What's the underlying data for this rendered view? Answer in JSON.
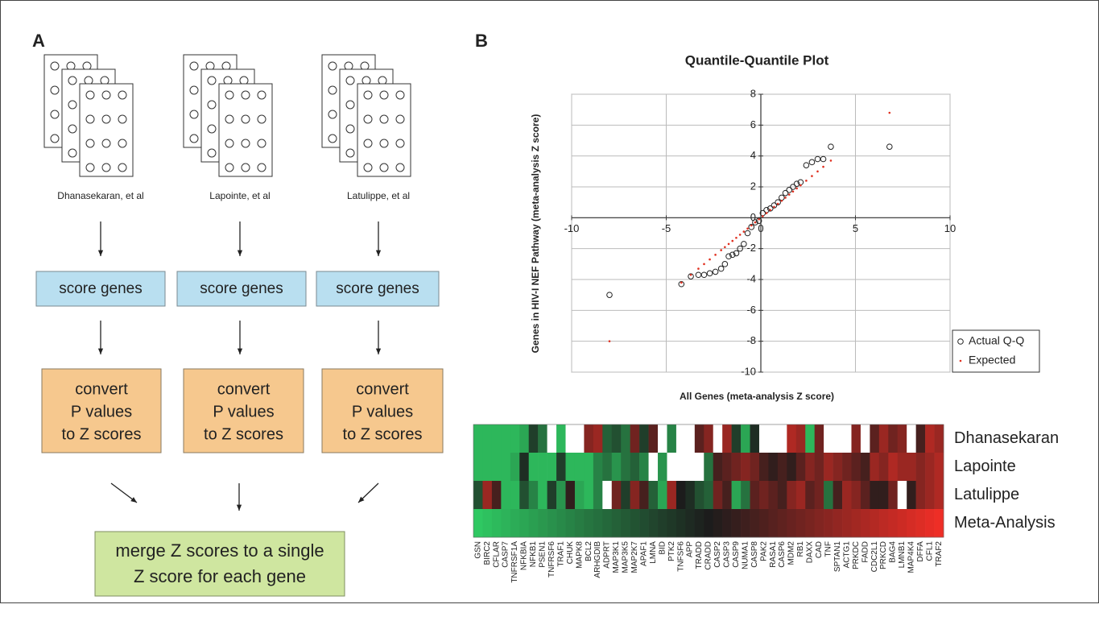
{
  "panel_a": {
    "label": "A",
    "studies": [
      "Dhanasekaran, et al",
      "Lapointe, et al",
      "Latulippe, et al"
    ],
    "score_step": [
      "score genes",
      "score genes",
      "score genes"
    ],
    "convert_step": [
      [
        "convert",
        "P values",
        "to Z scores"
      ],
      [
        "convert",
        "P values",
        "to Z scores"
      ],
      [
        "convert",
        "P values",
        "to Z scores"
      ]
    ],
    "merge_step": [
      "merge Z scores to a single",
      "Z score for each gene"
    ]
  },
  "panel_b": {
    "label": "B"
  },
  "chart_data": [
    {
      "type": "scatter",
      "title": "Quantile-Quantile Plot",
      "x_label": "All Genes (meta-analysis Z score)",
      "y_label": "Genes in HIV-I NEF Pathway (meta-analysis Z score)",
      "xlim": [
        -10,
        10
      ],
      "xticks": [
        -10,
        -5,
        0,
        5,
        10
      ],
      "ylim": [
        -10,
        8
      ],
      "yticks": [
        -10,
        -8,
        -6,
        -4,
        -2,
        0,
        2,
        4,
        6,
        8
      ],
      "grid": true,
      "legend": "lower right",
      "series": [
        {
          "name": "Actual Q-Q",
          "color": "#222222",
          "marker": "open-circle",
          "x": [
            -8,
            -4.2,
            -3.7,
            -3.3,
            -3.0,
            -2.7,
            -2.4,
            -2.1,
            -1.9,
            -1.7,
            -1.5,
            -1.3,
            -1.1,
            -0.9,
            -0.7,
            -0.5,
            -0.3,
            -0.1,
            0.1,
            0.3,
            0.5,
            0.7,
            0.9,
            1.1,
            1.3,
            1.5,
            1.7,
            1.9,
            2.1,
            2.4,
            2.7,
            3.0,
            3.3,
            3.7,
            6.8
          ],
          "values": [
            -5,
            -4.3,
            -3.8,
            -3.7,
            -3.7,
            -3.6,
            -3.5,
            -3.3,
            -3.0,
            -2.5,
            -2.4,
            -2.3,
            -2.0,
            -1.7,
            -1.0,
            -0.6,
            -0.3,
            -0.2,
            0.3,
            0.5,
            0.6,
            0.8,
            1.0,
            1.3,
            1.6,
            1.8,
            2.0,
            2.2,
            2.3,
            3.4,
            3.6,
            3.8,
            3.8,
            4.6,
            4.6
          ]
        },
        {
          "name": "Expected",
          "color": "#e03020",
          "marker": "dot",
          "x": [
            -8,
            -4.2,
            -3.7,
            -3.3,
            -3.0,
            -2.7,
            -2.4,
            -2.1,
            -1.9,
            -1.7,
            -1.5,
            -1.3,
            -1.1,
            -0.9,
            -0.7,
            -0.5,
            -0.3,
            -0.1,
            0.1,
            0.3,
            0.5,
            0.7,
            0.9,
            1.1,
            1.3,
            1.5,
            1.7,
            1.9,
            2.1,
            2.4,
            2.7,
            3.0,
            3.3,
            3.7,
            6.8
          ],
          "values": [
            -8,
            -4.2,
            -3.7,
            -3.3,
            -3.0,
            -2.7,
            -2.4,
            -2.1,
            -1.9,
            -1.7,
            -1.5,
            -1.3,
            -1.1,
            -0.9,
            -0.7,
            -0.5,
            -0.3,
            -0.1,
            0.1,
            0.3,
            0.5,
            0.7,
            0.9,
            1.1,
            1.3,
            1.5,
            1.7,
            1.9,
            2.1,
            2.4,
            2.7,
            3.0,
            3.3,
            3.7,
            6.8
          ]
        }
      ]
    },
    {
      "type": "heatmap",
      "rows": [
        "Dhanasekaran",
        "Lapointe",
        "Latulippe",
        "Meta-Analysis"
      ],
      "columns": [
        "GSN",
        "BIRC2",
        "CFLAR",
        "CASP7",
        "TNFRSF1A",
        "NFKBIA",
        "NFKB1",
        "PSEN1",
        "TNFRSF6",
        "TRAF1",
        "CHUK",
        "MAPK8",
        "BCL2",
        "ARHGDIB",
        "ADPRT",
        "MAP3K1",
        "MAP3K5",
        "MAP2K7",
        "APAF1",
        "LMNA",
        "BID",
        "PTK2",
        "TNFSF6",
        "APP",
        "TRADD",
        "CRADD",
        "CASP2",
        "CASP3",
        "CASP9",
        "NUMA1",
        "CASP8",
        "PAK2",
        "RASA1",
        "CASP6",
        "MDM2",
        "RB1",
        "DAXX",
        "CAD",
        "TNF",
        "SPTAN1",
        "ACTG1",
        "PRKDC",
        "FADD",
        "CDC2L1",
        "PRKCD",
        "BAG4",
        "LMNB1",
        "MAP4K4",
        "DFFA",
        "CFL1",
        "TRAF2"
      ],
      "low_color": "#2fc862",
      "mid_color": "#1c1c1c",
      "high_color": "#ee2e26",
      "missing_color": "#ffffff",
      "values": [
        [
          -0.9,
          -0.9,
          -0.9,
          -0.9,
          -0.9,
          -0.8,
          -0.2,
          -0.5,
          null,
          -0.9,
          null,
          null,
          0.5,
          0.6,
          -0.4,
          -0.3,
          -0.5,
          0.4,
          -0.2,
          0.3,
          null,
          -0.6,
          null,
          null,
          0.3,
          0.5,
          null,
          0.6,
          -0.2,
          -0.8,
          -0.1,
          null,
          null,
          null,
          0.7,
          0.6,
          -0.9,
          0.4,
          null,
          null,
          null,
          0.5,
          null,
          0.3,
          0.6,
          0.4,
          0.5,
          null,
          0.2,
          0.7,
          0.6
        ],
        [
          -0.9,
          -0.9,
          -0.9,
          -0.9,
          -0.8,
          -0.1,
          -0.9,
          -0.9,
          -0.9,
          -0.2,
          -0.9,
          -0.9,
          -0.9,
          -0.6,
          -0.5,
          -0.7,
          -0.5,
          -0.4,
          -0.6,
          null,
          -0.7,
          null,
          null,
          null,
          null,
          -0.5,
          0.2,
          0.3,
          0.4,
          0.5,
          0.4,
          0.2,
          0.1,
          0.2,
          0.1,
          0.3,
          0.5,
          0.4,
          0.6,
          0.5,
          0.4,
          0.3,
          0.2,
          0.6,
          0.5,
          0.7,
          0.6,
          0.6,
          0.5,
          0.6,
          0.7
        ],
        [
          -0.3,
          0.6,
          0.2,
          -0.9,
          -0.9,
          -0.3,
          -0.6,
          -0.9,
          -0.2,
          -0.7,
          0.1,
          -0.8,
          -0.9,
          -0.6,
          null,
          0.4,
          -0.2,
          0.5,
          0.2,
          -0.4,
          -0.8,
          0.6,
          0,
          -0.1,
          -0.3,
          -0.4,
          0.4,
          0.2,
          -0.8,
          -0.5,
          0.3,
          0.4,
          0.3,
          0.2,
          0.5,
          0.6,
          0.3,
          0.4,
          -0.5,
          0.2,
          0.6,
          0.5,
          0.3,
          0.1,
          0.1,
          0.4,
          null,
          0.1,
          0.5,
          0.6,
          0.7
        ],
        [
          -1.0,
          -0.96,
          -0.92,
          -0.88,
          -0.84,
          -0.8,
          -0.76,
          -0.72,
          -0.68,
          -0.64,
          -0.6,
          -0.56,
          -0.52,
          -0.48,
          -0.44,
          -0.4,
          -0.36,
          -0.32,
          -0.28,
          -0.24,
          -0.2,
          -0.16,
          -0.12,
          -0.08,
          -0.04,
          0,
          0.04,
          0.08,
          0.12,
          0.16,
          0.2,
          0.24,
          0.28,
          0.32,
          0.36,
          0.4,
          0.44,
          0.48,
          0.52,
          0.56,
          0.6,
          0.64,
          0.68,
          0.72,
          0.76,
          0.8,
          0.84,
          0.88,
          0.92,
          0.96,
          1.0
        ]
      ]
    }
  ]
}
